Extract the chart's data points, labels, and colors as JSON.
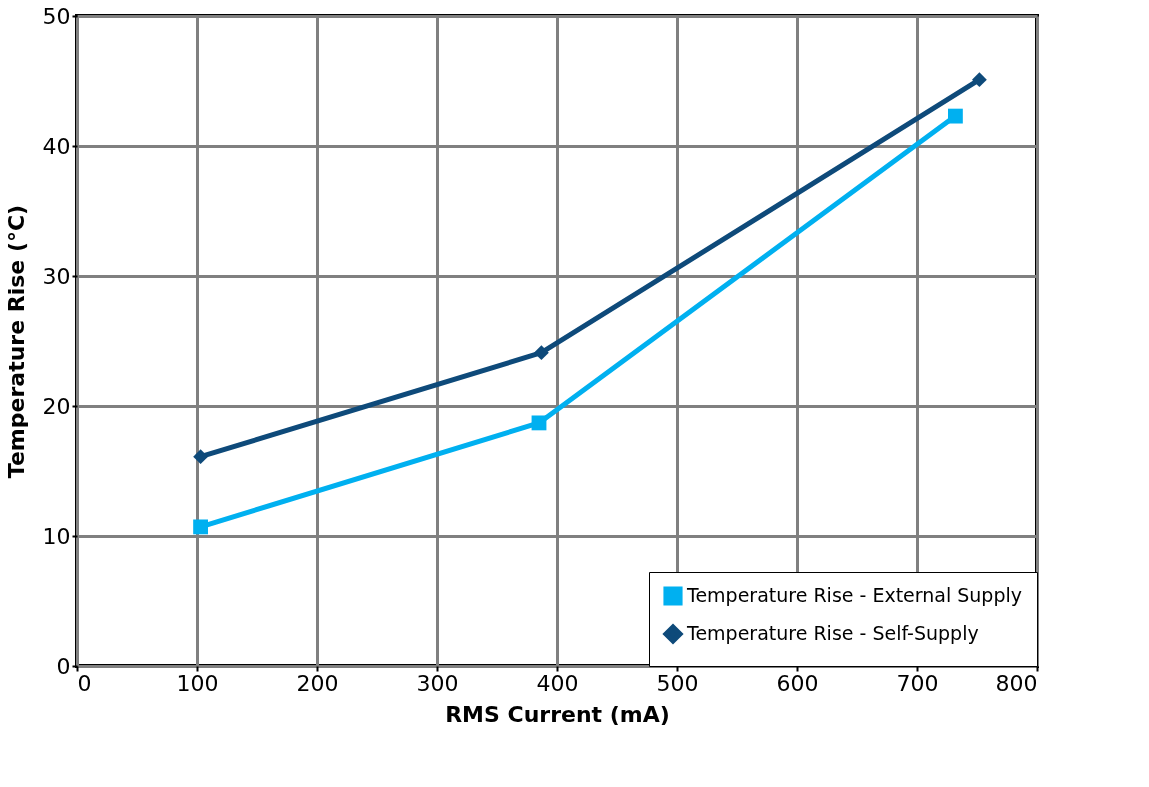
{
  "chart_data": {
    "type": "line",
    "xlabel": "RMS Current (mA)",
    "ylabel": "Temperature Rise (°C)",
    "xlim": [
      0,
      800
    ],
    "xticks": [
      0,
      100,
      200,
      300,
      400,
      500,
      600,
      700,
      800
    ],
    "ylim": [
      0,
      50
    ],
    "yticks": [
      0,
      10,
      20,
      30,
      40,
      50
    ],
    "grid": true,
    "legend": "bottom right",
    "line_style": "solid",
    "series": [
      {
        "name": "Temperature Rise - External Supply",
        "color": "#00b0f0",
        "marker": "square",
        "x": [
          103,
          385,
          732
        ],
        "values": [
          10.7,
          18.7,
          42.3
        ]
      },
      {
        "name": "Temperature Rise - Self-Supply",
        "color": "#0e4a7a",
        "marker": "diamond",
        "x": [
          103,
          387,
          752
        ],
        "values": [
          16.1,
          24.1,
          45.1
        ]
      }
    ]
  }
}
